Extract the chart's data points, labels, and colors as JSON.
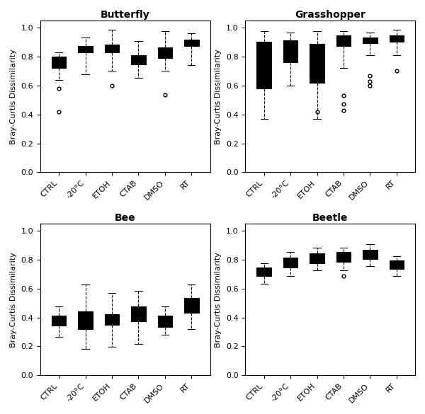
{
  "categories": [
    "CTRL",
    "-20°C",
    "ETOH",
    "CTAB",
    "DMSO",
    "RT"
  ],
  "panels": [
    {
      "title": "Butterfly",
      "boxes": [
        {
          "q1": 0.72,
          "median": 0.75,
          "q3": 0.8,
          "whislo": 0.64,
          "whishi": 0.83,
          "fliers": [
            0.58,
            0.42
          ]
        },
        {
          "q1": 0.83,
          "median": 0.855,
          "q3": 0.875,
          "whislo": 0.68,
          "whishi": 0.935,
          "fliers": []
        },
        {
          "q1": 0.83,
          "median": 0.865,
          "q3": 0.885,
          "whislo": 0.7,
          "whishi": 0.985,
          "fliers": [
            0.6
          ]
        },
        {
          "q1": 0.745,
          "median": 0.775,
          "q3": 0.81,
          "whislo": 0.655,
          "whishi": 0.91,
          "fliers": []
        },
        {
          "q1": 0.79,
          "median": 0.825,
          "q3": 0.865,
          "whislo": 0.7,
          "whishi": 0.975,
          "fliers": [
            0.535
          ]
        },
        {
          "q1": 0.875,
          "median": 0.895,
          "q3": 0.92,
          "whislo": 0.74,
          "whishi": 0.96,
          "fliers": []
        }
      ]
    },
    {
      "title": "Grasshopper",
      "boxes": [
        {
          "q1": 0.58,
          "median": 0.865,
          "q3": 0.905,
          "whislo": 0.37,
          "whishi": 0.975,
          "fliers": []
        },
        {
          "q1": 0.76,
          "median": 0.885,
          "q3": 0.915,
          "whislo": 0.6,
          "whishi": 0.965,
          "fliers": []
        },
        {
          "q1": 0.62,
          "median": 0.875,
          "q3": 0.89,
          "whislo": 0.37,
          "whishi": 0.975,
          "fliers": [
            0.42
          ]
        },
        {
          "q1": 0.875,
          "median": 0.93,
          "q3": 0.945,
          "whislo": 0.72,
          "whishi": 0.975,
          "fliers": [
            0.53,
            0.47,
            0.43
          ]
        },
        {
          "q1": 0.895,
          "median": 0.915,
          "q3": 0.935,
          "whislo": 0.81,
          "whishi": 0.965,
          "fliers": [
            0.6,
            0.63,
            0.67
          ]
        },
        {
          "q1": 0.905,
          "median": 0.93,
          "q3": 0.945,
          "whislo": 0.81,
          "whishi": 0.985,
          "fliers": [
            0.7
          ]
        }
      ]
    },
    {
      "title": "Bee",
      "boxes": [
        {
          "q1": 0.345,
          "median": 0.375,
          "q3": 0.415,
          "whislo": 0.265,
          "whishi": 0.475,
          "fliers": []
        },
        {
          "q1": 0.32,
          "median": 0.39,
          "q3": 0.44,
          "whislo": 0.185,
          "whishi": 0.63,
          "fliers": []
        },
        {
          "q1": 0.35,
          "median": 0.39,
          "q3": 0.425,
          "whislo": 0.195,
          "whishi": 0.57,
          "fliers": []
        },
        {
          "q1": 0.375,
          "median": 0.415,
          "q3": 0.475,
          "whislo": 0.215,
          "whishi": 0.585,
          "fliers": []
        },
        {
          "q1": 0.335,
          "median": 0.375,
          "q3": 0.415,
          "whislo": 0.28,
          "whishi": 0.475,
          "fliers": []
        },
        {
          "q1": 0.435,
          "median": 0.47,
          "q3": 0.535,
          "whislo": 0.32,
          "whishi": 0.63,
          "fliers": []
        }
      ]
    },
    {
      "title": "Beetle",
      "boxes": [
        {
          "q1": 0.685,
          "median": 0.72,
          "q3": 0.745,
          "whislo": 0.635,
          "whishi": 0.775,
          "fliers": []
        },
        {
          "q1": 0.745,
          "median": 0.775,
          "q3": 0.815,
          "whislo": 0.685,
          "whishi": 0.855,
          "fliers": []
        },
        {
          "q1": 0.775,
          "median": 0.805,
          "q3": 0.845,
          "whislo": 0.725,
          "whishi": 0.885,
          "fliers": []
        },
        {
          "q1": 0.785,
          "median": 0.815,
          "q3": 0.855,
          "whislo": 0.725,
          "whishi": 0.885,
          "fliers": [
            0.685
          ]
        },
        {
          "q1": 0.805,
          "median": 0.845,
          "q3": 0.87,
          "whislo": 0.755,
          "whishi": 0.91,
          "fliers": []
        },
        {
          "q1": 0.735,
          "median": 0.765,
          "q3": 0.795,
          "whislo": 0.685,
          "whishi": 0.825,
          "fliers": []
        }
      ]
    }
  ],
  "ylabel": "Bray-Curtis Dissimilarity",
  "ylim": [
    0.0,
    1.05
  ],
  "yticks": [
    0.0,
    0.2,
    0.4,
    0.6,
    0.8,
    1.0
  ],
  "background_color": "#ffffff",
  "box_facecolor": "#ffffff",
  "box_edgecolor": "#000000",
  "median_color": "#000000",
  "whisker_color": "#000000",
  "flier_color": "#000000",
  "title_fontsize": 10,
  "label_fontsize": 8,
  "tick_fontsize": 8
}
